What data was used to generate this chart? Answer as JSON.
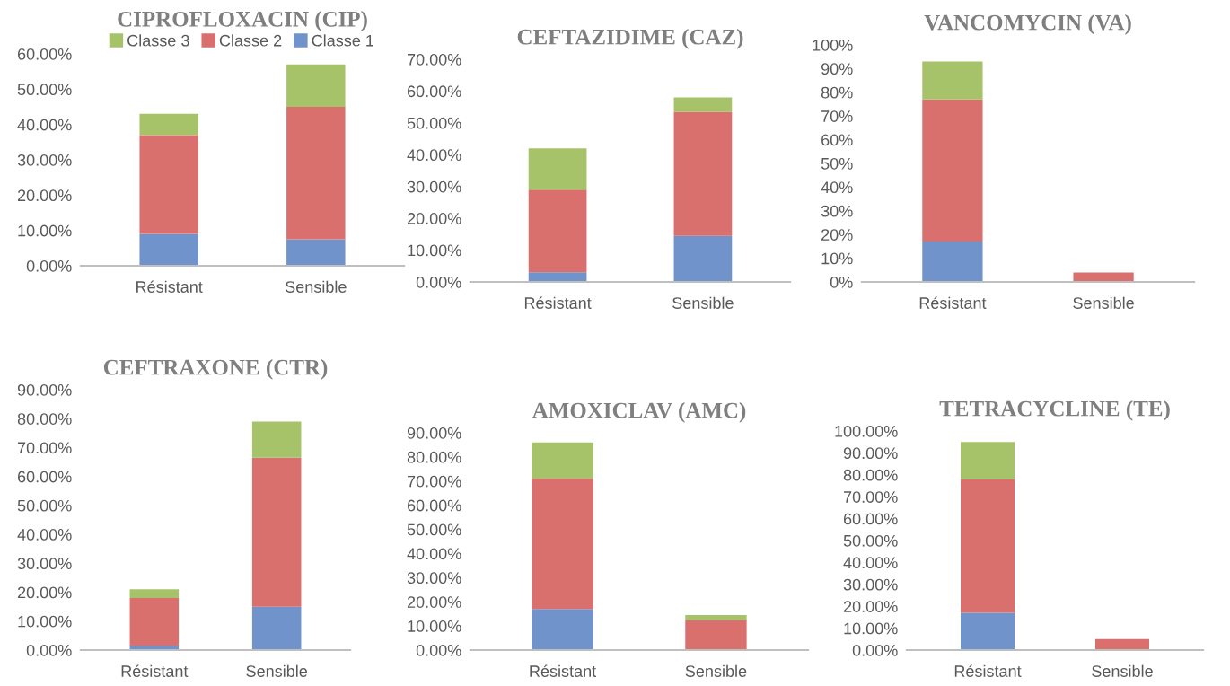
{
  "chart_data": [
    {
      "type": "bar",
      "stacked": true,
      "title": "CIPROFLOXACIN (CIP)",
      "categories": [
        "Résistant",
        "Sensible"
      ],
      "legend": "top",
      "grid": false,
      "series": [
        {
          "name": "Classe 1",
          "color": "#7093cc",
          "values": [
            9,
            7.5
          ]
        },
        {
          "name": "Classe 2",
          "color": "#d9706e",
          "values": [
            28,
            37.5
          ]
        },
        {
          "name": "Classe 3",
          "color": "#a6c36a",
          "values": [
            6,
            12
          ]
        }
      ],
      "ylim": [
        0,
        60
      ],
      "yticks": [
        {
          "value": 0,
          "label": "0.00%"
        },
        {
          "value": 10,
          "label": "10.00%"
        },
        {
          "value": 20,
          "label": "20.00%"
        },
        {
          "value": 30,
          "label": "30.00%"
        },
        {
          "value": 40,
          "label": "40.00%"
        },
        {
          "value": 50,
          "label": "50.00%"
        },
        {
          "value": 60,
          "label": "60.00%"
        }
      ]
    },
    {
      "type": "bar",
      "stacked": true,
      "title": "CEFTAZIDIME (CAZ)",
      "categories": [
        "Résistant",
        "Sensible"
      ],
      "grid": false,
      "series": [
        {
          "color": "#7093cc",
          "values": [
            3,
            14.5
          ]
        },
        {
          "color": "#d9706e",
          "values": [
            26,
            39
          ]
        },
        {
          "color": "#a6c36a",
          "values": [
            13,
            4.5
          ]
        }
      ],
      "ylim": [
        0,
        70
      ],
      "yticks": [
        {
          "value": 0,
          "label": "0.00%"
        },
        {
          "value": 10,
          "label": "10.00%"
        },
        {
          "value": 20,
          "label": "20.00%"
        },
        {
          "value": 30,
          "label": "30.00%"
        },
        {
          "value": 40,
          "label": "40.00%"
        },
        {
          "value": 50,
          "label": "50.00%"
        },
        {
          "value": 60,
          "label": "60.00%"
        },
        {
          "value": 70,
          "label": "70.00%"
        }
      ]
    },
    {
      "type": "bar",
      "stacked": true,
      "title": "VANCOMYCIN (VA)",
      "categories": [
        "Résistant",
        "Sensible"
      ],
      "grid": false,
      "series": [
        {
          "color": "#7093cc",
          "values": [
            17,
            0
          ]
        },
        {
          "color": "#d9706e",
          "values": [
            60,
            4
          ]
        },
        {
          "color": "#a6c36a",
          "values": [
            16,
            0
          ]
        }
      ],
      "ylim": [
        0,
        100
      ],
      "yticks": [
        {
          "value": 0,
          "label": "0%"
        },
        {
          "value": 10,
          "label": "10%"
        },
        {
          "value": 20,
          "label": "20%"
        },
        {
          "value": 30,
          "label": "30%"
        },
        {
          "value": 40,
          "label": "40%"
        },
        {
          "value": 50,
          "label": "50%"
        },
        {
          "value": 60,
          "label": "60%"
        },
        {
          "value": 70,
          "label": "70%"
        },
        {
          "value": 80,
          "label": "80%"
        },
        {
          "value": 90,
          "label": "90%"
        },
        {
          "value": 100,
          "label": "100%"
        }
      ]
    },
    {
      "type": "bar",
      "stacked": true,
      "title": "CEFTRAXONE (CTR)",
      "categories": [
        "Résistant",
        "Sensible"
      ],
      "grid": false,
      "series": [
        {
          "color": "#7093cc",
          "values": [
            1.5,
            15
          ]
        },
        {
          "color": "#d9706e",
          "values": [
            16.5,
            51.5
          ]
        },
        {
          "color": "#a6c36a",
          "values": [
            3,
            12.5
          ]
        }
      ],
      "ylim": [
        0,
        90
      ],
      "yticks": [
        {
          "value": 0,
          "label": "0.00%"
        },
        {
          "value": 10,
          "label": "10.00%"
        },
        {
          "value": 20,
          "label": "20.00%"
        },
        {
          "value": 30,
          "label": "30.00%"
        },
        {
          "value": 40,
          "label": "40.00%"
        },
        {
          "value": 50,
          "label": "50.00%"
        },
        {
          "value": 60,
          "label": "60.00%"
        },
        {
          "value": 70,
          "label": "70.00%"
        },
        {
          "value": 80,
          "label": "80.00%"
        },
        {
          "value": 90,
          "label": "90.00%"
        }
      ]
    },
    {
      "type": "bar",
      "stacked": true,
      "title": "AMOXICLAV (AMC)",
      "categories": [
        "Résistant",
        "Sensible"
      ],
      "grid": false,
      "series": [
        {
          "color": "#7093cc",
          "values": [
            17,
            0
          ]
        },
        {
          "color": "#d9706e",
          "values": [
            54,
            12.5
          ]
        },
        {
          "color": "#a6c36a",
          "values": [
            15,
            2
          ]
        }
      ],
      "ylim": [
        0,
        90
      ],
      "yticks": [
        {
          "value": 0,
          "label": "0.00%"
        },
        {
          "value": 10,
          "label": "10.00%"
        },
        {
          "value": 20,
          "label": "20.00%"
        },
        {
          "value": 30,
          "label": "30.00%"
        },
        {
          "value": 40,
          "label": "40.00%"
        },
        {
          "value": 50,
          "label": "50.00%"
        },
        {
          "value": 60,
          "label": "60.00%"
        },
        {
          "value": 70,
          "label": "70.00%"
        },
        {
          "value": 80,
          "label": "80.00%"
        },
        {
          "value": 90,
          "label": "90.00%"
        }
      ]
    },
    {
      "type": "bar",
      "stacked": true,
      "title": "TETRACYCLINE (TE)",
      "categories": [
        "Résistant",
        "Sensible"
      ],
      "grid": false,
      "series": [
        {
          "color": "#7093cc",
          "values": [
            17,
            0
          ]
        },
        {
          "color": "#d9706e",
          "values": [
            61,
            5
          ]
        },
        {
          "color": "#a6c36a",
          "values": [
            17,
            0
          ]
        }
      ],
      "ylim": [
        0,
        100
      ],
      "yticks": [
        {
          "value": 0,
          "label": "0.00%"
        },
        {
          "value": 10,
          "label": "10.00%"
        },
        {
          "value": 20,
          "label": "20.00%"
        },
        {
          "value": 30,
          "label": "30.00%"
        },
        {
          "value": 40,
          "label": "40.00%"
        },
        {
          "value": 50,
          "label": "50.00%"
        },
        {
          "value": 60,
          "label": "60.00%"
        },
        {
          "value": 70,
          "label": "70.00%"
        },
        {
          "value": 80,
          "label": "80.00%"
        },
        {
          "value": 90,
          "label": "90.00%"
        },
        {
          "value": 100,
          "label": "100.00%"
        }
      ]
    }
  ]
}
